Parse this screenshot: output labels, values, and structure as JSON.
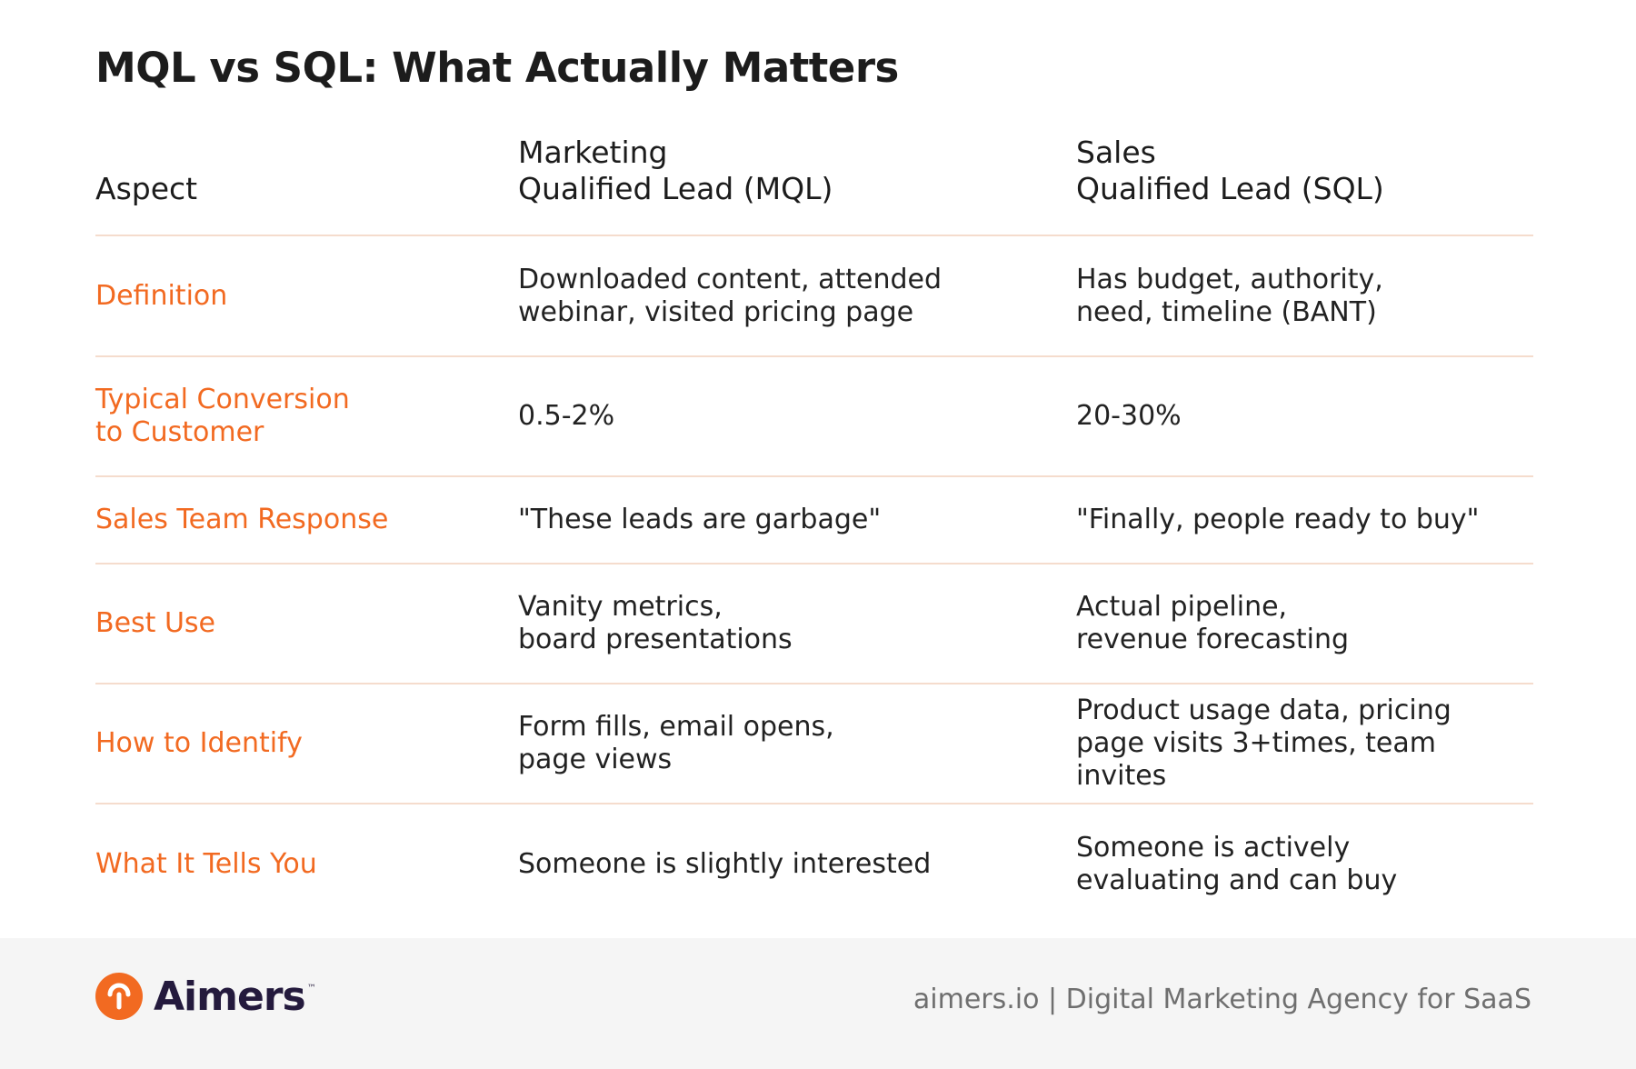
{
  "title": "MQL vs SQL: What Actually Matters",
  "table": {
    "headers": [
      "Aspect",
      "Marketing\nQualified Lead (MQL)",
      "Sales\nQualified Lead (SQL)"
    ],
    "rows": [
      {
        "aspect": "Definition",
        "mql": "Downloaded content, attended\nwebinar, visited pricing page",
        "sql": "Has budget, authority,\nneed, timeline (BANT)"
      },
      {
        "aspect": "Typical Conversion\nto Customer",
        "mql": "0.5-2%",
        "sql": "20-30%"
      },
      {
        "aspect": "Sales Team Response",
        "mql": "\"These leads are garbage\"",
        "sql": "\"Finally, people ready to buy\""
      },
      {
        "aspect": "Best Use",
        "mql": "Vanity metrics,\nboard presentations",
        "sql": "Actual pipeline,\nrevenue forecasting"
      },
      {
        "aspect": "How to Identify",
        "mql": "Form fills, email opens,\npage views",
        "sql": "Product usage data, pricing\npage visits 3+times, team invites"
      },
      {
        "aspect": "What It Tells You",
        "mql": "Someone is slightly interested",
        "sql": "Someone is actively\nevaluating and can buy"
      }
    ]
  },
  "footer": {
    "logo_text": "Aimers",
    "logo_tm": "™",
    "tagline": "aimers.io | Digital Marketing Agency for SaaS"
  },
  "colors": {
    "accent": "#f26a21",
    "divider": "#f5dccd",
    "brand_dark": "#241a3d"
  }
}
